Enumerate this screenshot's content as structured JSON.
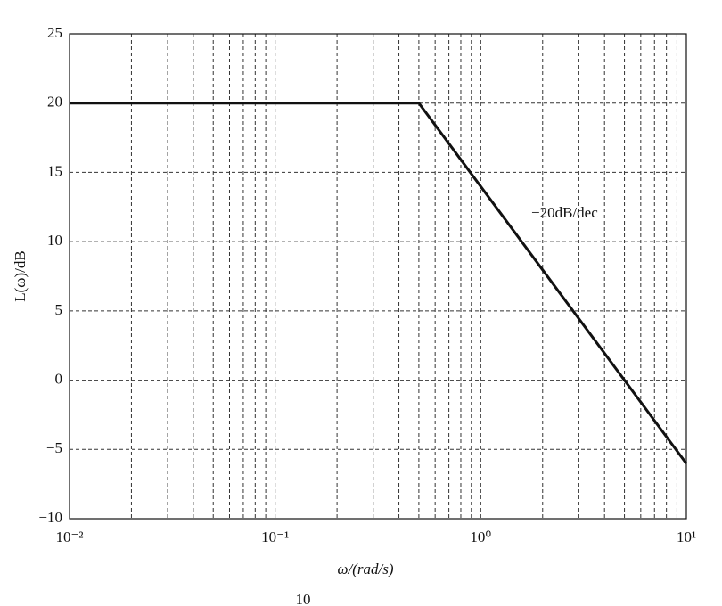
{
  "chart_data": {
    "type": "line",
    "xlabel": "ω/(rad/s)",
    "ylabel": "L(ω)/dB",
    "x": [
      0.01,
      0.5,
      10
    ],
    "series": [
      {
        "values": [
          20,
          20,
          -6.02
        ],
        "color": "#111111"
      }
    ],
    "annotation": "−20dB/dec",
    "xscale": "log",
    "xlim": [
      0.01,
      10
    ],
    "xticks": [
      {
        "value": 0.01,
        "label": "10⁻²"
      },
      {
        "value": 0.1,
        "label": "10⁻¹"
      },
      {
        "value": 1,
        "label": "10⁰"
      },
      {
        "value": 10,
        "label": "10¹"
      }
    ],
    "ylim": [
      -10,
      25
    ],
    "yticks": [
      {
        "value": -10,
        "label": "−10"
      },
      {
        "value": -5,
        "label": "−5"
      },
      0,
      5,
      10,
      15,
      20,
      25
    ],
    "grid": true,
    "minor_grid": true,
    "caption_fragment": "10"
  }
}
